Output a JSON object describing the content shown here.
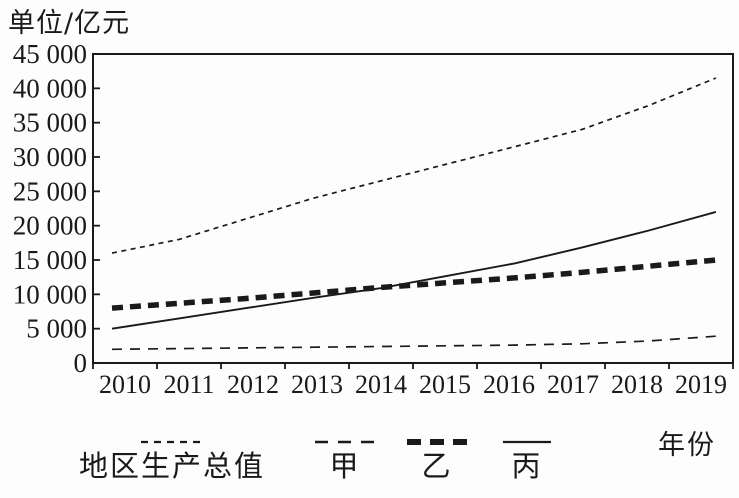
{
  "chart": {
    "unit_label": "单位/亿元",
    "x_axis_label": "年份"
  },
  "legend": {
    "items": [
      {
        "key": "gdp",
        "label": "地区生产总值",
        "style": "fine-dash"
      },
      {
        "key": "jia",
        "label": "甲",
        "style": "dash"
      },
      {
        "key": "yi",
        "label": "乙",
        "style": "heavy-dash"
      },
      {
        "key": "bing",
        "label": "丙",
        "style": "solid"
      }
    ]
  },
  "chart_data": {
    "type": "line",
    "title": "单位/亿元",
    "xlabel": "年份",
    "ylabel": "单位/亿元",
    "grid": false,
    "legend_position": "bottom",
    "ylim": [
      0,
      45000
    ],
    "x": [
      2010,
      2011,
      2012,
      2013,
      2014,
      2015,
      2016,
      2017,
      2018,
      2019
    ],
    "x_tick_labels": [
      "2010",
      "2011",
      "2012",
      "2013",
      "2014",
      "2015",
      "2016",
      "2017",
      "2018",
      "2019"
    ],
    "y_ticks": [
      {
        "value": 45000,
        "label": "45 000"
      },
      {
        "value": 40000,
        "label": "40 000"
      },
      {
        "value": 35000,
        "label": "35 000"
      },
      {
        "value": 30000,
        "label": "30 000"
      },
      {
        "value": 25000,
        "label": "25 000"
      },
      {
        "value": 20000,
        "label": "20 000"
      },
      {
        "value": 15000,
        "label": "15 000"
      },
      {
        "value": 10000,
        "label": "10 000"
      },
      {
        "value": 5000,
        "label": "5 000"
      },
      {
        "value": 0,
        "label": "0"
      }
    ],
    "series": [
      {
        "key": "gdp",
        "name": "地区生产总值",
        "values": [
          16000,
          18000,
          21000,
          24000,
          26500,
          29000,
          31500,
          34000,
          37500,
          41500
        ]
      },
      {
        "key": "jia",
        "name": "甲",
        "values": [
          2000,
          2100,
          2200,
          2300,
          2400,
          2500,
          2600,
          2800,
          3200,
          3900
        ]
      },
      {
        "key": "yi",
        "name": "乙",
        "values": [
          8000,
          8700,
          9400,
          10200,
          11000,
          11700,
          12400,
          13200,
          14100,
          15000
        ]
      },
      {
        "key": "bing",
        "name": "丙",
        "values": [
          5000,
          6500,
          8000,
          9500,
          10900,
          12700,
          14500,
          16800,
          19300,
          22000
        ]
      }
    ],
    "line_color": "#1a1a1a"
  }
}
